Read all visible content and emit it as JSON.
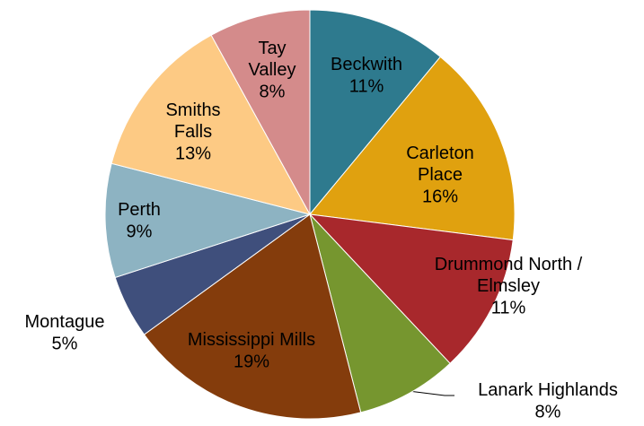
{
  "chart_data": {
    "type": "pie",
    "categories": [
      "Beckwith",
      "Carleton Place",
      "Drummond North / Elmsley",
      "Lanark Highlands",
      "Mississippi Mills",
      "Montague",
      "Perth",
      "Smiths Falls",
      "Tay Valley"
    ],
    "values": [
      11,
      16,
      11,
      8,
      19,
      5,
      9,
      13,
      8
    ],
    "value_labels": [
      "11%",
      "16%",
      "11%",
      "8%",
      "19%",
      "5%",
      "9%",
      "13%",
      "8%"
    ],
    "colors": [
      "#2e7a8e",
      "#e0a10f",
      "#a8282c",
      "#76962f",
      "#843c0c",
      "#3f4f7c",
      "#8db3c2",
      "#fdca84",
      "#d48b8b"
    ]
  }
}
